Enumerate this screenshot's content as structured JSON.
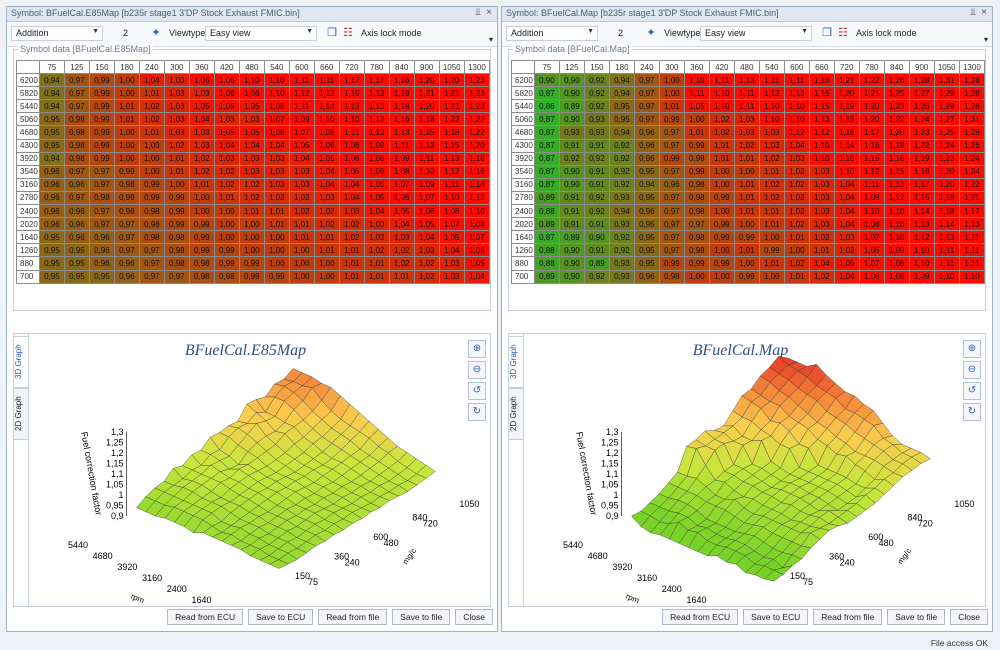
{
  "panels": [
    {
      "title": "Symbol: BFuelCal.E85Map [b235r stage1 3'DP Stock Exhaust FMIC.bin]",
      "mode": "Addition",
      "amount": "2",
      "viewtype_label": "Viewtype",
      "viewtype_value": "Easy view",
      "axis_lock_label": "Axis lock mode",
      "group_title": "Symbol data [BFuelCal.E85Map]",
      "graph_title": "BFuelCal.E85Map",
      "tabs": [
        "3D Graph",
        "2D Graph"
      ],
      "axis_z_ticks": [
        "1,3",
        "1,25",
        "1,2",
        "1,15",
        "1,1",
        "1,05",
        "1",
        "0,95",
        "0,9"
      ],
      "axis_z_label": "Fuel correction factor",
      "axis_rpm_ticks": [
        "5440",
        "4680",
        "3920",
        "3160",
        "2400",
        "1640"
      ],
      "axis_rpm_label": "rpm",
      "axis_mg_ticks": [
        "1050",
        "840",
        "720",
        "600",
        "480",
        "360",
        "240",
        "150",
        "75"
      ],
      "axis_mg_label": "mg/c",
      "buttons": [
        "Read from ECU",
        "Save to ECU",
        "Read from file",
        "Save to file",
        "Close"
      ],
      "columns": [
        "75",
        "125",
        "150",
        "180",
        "240",
        "300",
        "360",
        "420",
        "480",
        "540",
        "600",
        "660",
        "720",
        "780",
        "840",
        "900",
        "1050",
        "1300"
      ],
      "rows": [
        {
          "rpm": "6200",
          "values": [
            "0,94",
            "0,97",
            "0,99",
            "1,00",
            "1,04",
            "1,03",
            "1,06",
            "1,06",
            "1,10",
            "1,10",
            "1,11",
            "1,11",
            "1,17",
            "1,17",
            "1,16",
            "1,20",
            "1,20",
            "1,23"
          ]
        },
        {
          "rpm": "5820",
          "values": [
            "0,94",
            "0,97",
            "0,99",
            "1,00",
            "1,01",
            "1,03",
            "1,03",
            "1,06",
            "1,06",
            "1,10",
            "1,12",
            "1,12",
            "1,15",
            "1,13",
            "1,18",
            "1,21",
            "1,21",
            "1,23"
          ]
        },
        {
          "rpm": "5440",
          "values": [
            "0,94",
            "0,97",
            "0,99",
            "1,01",
            "1,02",
            "1,03",
            "1,05",
            "1,05",
            "1,05",
            "1,08",
            "1,11",
            "1,14",
            "1,13",
            "1,13",
            "1,18",
            "1,20",
            "1,21",
            "1,23"
          ]
        },
        {
          "rpm": "5060",
          "values": [
            "0,95",
            "0,98",
            "0,99",
            "1,01",
            "1,02",
            "1,03",
            "1,04",
            "1,03",
            "1,03",
            "1,07",
            "1,09",
            "1,10",
            "1,10",
            "1,12",
            "1,16",
            "1,18",
            "1,22",
            "1,22"
          ]
        },
        {
          "rpm": "4680",
          "values": [
            "0,95",
            "0,98",
            "0,99",
            "1,00",
            "1,01",
            "1,03",
            "1,03",
            "1,05",
            "1,05",
            "1,06",
            "1,07",
            "1,08",
            "1,11",
            "1,12",
            "1,13",
            "1,15",
            "1,18",
            "1,22"
          ]
        },
        {
          "rpm": "4300",
          "values": [
            "0,95",
            "0,98",
            "0,99",
            "1,00",
            "1,00",
            "1,02",
            "1,03",
            "1,04",
            "1,04",
            "1,04",
            "1,05",
            "1,06",
            "1,08",
            "1,09",
            "1,11",
            "1,13",
            "1,15",
            "1,20"
          ]
        },
        {
          "rpm": "3920",
          "values": [
            "0,94",
            "0,98",
            "0,99",
            "1,00",
            "1,00",
            "1,01",
            "1,02",
            "1,03",
            "1,03",
            "1,03",
            "1,04",
            "1,05",
            "1,06",
            "1,08",
            "1,09",
            "1,11",
            "1,13",
            "1,18"
          ]
        },
        {
          "rpm": "3540",
          "values": [
            "0,96",
            "0,97",
            "0,97",
            "0,99",
            "1,00",
            "1,01",
            "1,02",
            "1,02",
            "1,03",
            "1,03",
            "1,03",
            "1,04",
            "1,05",
            "1,06",
            "1,08",
            "1,10",
            "1,12",
            "1,16"
          ]
        },
        {
          "rpm": "3160",
          "values": [
            "0,96",
            "0,96",
            "0,97",
            "0,98",
            "0,99",
            "1,00",
            "1,01",
            "1,02",
            "1,02",
            "1,03",
            "1,03",
            "1,04",
            "1,04",
            "1,05",
            "1,07",
            "1,09",
            "1,11",
            "1,14"
          ]
        },
        {
          "rpm": "2780",
          "values": [
            "0,96",
            "0,97",
            "0,98",
            "0,98",
            "0,99",
            "0,99",
            "1,00",
            "1,01",
            "1,02",
            "1,02",
            "1,02",
            "1,03",
            "1,04",
            "1,05",
            "1,06",
            "1,07",
            "1,10",
            "1,12"
          ]
        },
        {
          "rpm": "2400",
          "values": [
            "0,96",
            "0,96",
            "0,97",
            "0,98",
            "0,98",
            "0,99",
            "1,00",
            "1,00",
            "1,01",
            "1,01",
            "1,02",
            "1,02",
            "1,03",
            "1,04",
            "1,05",
            "1,06",
            "1,08",
            "1,10"
          ]
        },
        {
          "rpm": "2020",
          "values": [
            "0,96",
            "0,96",
            "0,97",
            "0,97",
            "0,98",
            "0,99",
            "0,99",
            "1,00",
            "1,00",
            "1,01",
            "1,01",
            "1,02",
            "1,02",
            "1,03",
            "1,04",
            "1,05",
            "1,07",
            "1,08"
          ]
        },
        {
          "rpm": "1640",
          "values": [
            "0,95",
            "0,96",
            "0,96",
            "0,97",
            "0,98",
            "0,98",
            "0,99",
            "1,00",
            "1,00",
            "1,00",
            "1,01",
            "1,01",
            "1,02",
            "1,02",
            "1,03",
            "1,04",
            "1,05",
            "1,07"
          ]
        },
        {
          "rpm": "1260",
          "values": [
            "0,95",
            "0,95",
            "0,96",
            "0,97",
            "0,97",
            "0,98",
            "0,99",
            "0,99",
            "1,00",
            "1,00",
            "1,00",
            "1,01",
            "1,01",
            "1,02",
            "1,02",
            "1,03",
            "1,04",
            "1,06"
          ]
        },
        {
          "rpm": "880",
          "values": [
            "0,95",
            "0,95",
            "0,96",
            "0,96",
            "0,97",
            "0,98",
            "0,98",
            "0,99",
            "0,99",
            "1,00",
            "1,00",
            "1,00",
            "1,01",
            "1,01",
            "1,02",
            "1,02",
            "1,03",
            "1,05"
          ]
        },
        {
          "rpm": "700",
          "values": [
            "0,95",
            "0,95",
            "0,95",
            "0,96",
            "0,97",
            "0,97",
            "0,98",
            "0,98",
            "0,99",
            "0,99",
            "1,00",
            "1,00",
            "1,01",
            "1,01",
            "1,01",
            "1,02",
            "1,03",
            "1,04"
          ]
        }
      ]
    },
    {
      "title": "Symbol: BFuelCal.Map [b235r stage1 3'DP Stock Exhaust FMIC.bin]",
      "mode": "Addition",
      "amount": "2",
      "viewtype_label": "Viewtype",
      "viewtype_value": "Easy view",
      "axis_lock_label": "Axis lock mode",
      "group_title": "Symbol data [BFuelCal.Map]",
      "graph_title": "BFuelCal.Map",
      "tabs": [
        "3D Graph",
        "2D Graph"
      ],
      "axis_z_ticks": [
        "1,3",
        "1,25",
        "1,2",
        "1,15",
        "1,1",
        "1,05",
        "1",
        "0,95",
        "0,9"
      ],
      "axis_z_label": "Fuel correction factor",
      "axis_rpm_ticks": [
        "5440",
        "4680",
        "3920",
        "3160",
        "2400",
        "1640"
      ],
      "axis_rpm_label": "rpm",
      "axis_mg_ticks": [
        "1050",
        "840",
        "720",
        "600",
        "480",
        "360",
        "240",
        "150",
        "75"
      ],
      "axis_mg_label": "mg/c",
      "buttons": [
        "Read from ECU",
        "Save to ECU",
        "Read from file",
        "Save to file",
        "Close"
      ],
      "columns": [
        "75",
        "125",
        "150",
        "180",
        "240",
        "300",
        "360",
        "420",
        "480",
        "540",
        "600",
        "660",
        "720",
        "780",
        "840",
        "900",
        "1050",
        "1300"
      ],
      "rows": [
        {
          "rpm": "6200",
          "values": [
            "0,90",
            "0,90",
            "0,92",
            "0,94",
            "0,97",
            "1,00",
            "1,10",
            "1,11",
            "1,13",
            "1,11",
            "1,11",
            "1,16",
            "1,21",
            "1,22",
            "1,26",
            "1,28",
            "1,31",
            "1,28"
          ]
        },
        {
          "rpm": "5820",
          "values": [
            "0,87",
            "0,90",
            "0,92",
            "0,94",
            "0,97",
            "1,00",
            "1,11",
            "1,10",
            "1,11",
            "1,12",
            "1,13",
            "1,15",
            "1,20",
            "1,21",
            "1,25",
            "1,27",
            "1,29",
            "1,28"
          ]
        },
        {
          "rpm": "5440",
          "values": [
            "0,86",
            "0,89",
            "0,92",
            "0,95",
            "0,97",
            "1,01",
            "1,05",
            "1,10",
            "1,11",
            "1,10",
            "1,10",
            "1,15",
            "1,19",
            "1,20",
            "1,23",
            "1,26",
            "1,28",
            "1,28"
          ]
        },
        {
          "rpm": "5060",
          "values": [
            "0,87",
            "0,90",
            "0,93",
            "0,95",
            "0,97",
            "0,99",
            "1,00",
            "1,02",
            "1,03",
            "1,10",
            "1,10",
            "1,13",
            "1,15",
            "1,20",
            "1,22",
            "1,24",
            "1,27",
            "1,31"
          ]
        },
        {
          "rpm": "4680",
          "values": [
            "0,87",
            "0,93",
            "0,93",
            "0,94",
            "0,96",
            "0,97",
            "1,01",
            "1,02",
            "1,03",
            "1,03",
            "1,12",
            "1,12",
            "1,16",
            "1,17",
            "1,20",
            "1,23",
            "1,25",
            "1,28"
          ]
        },
        {
          "rpm": "4300",
          "values": [
            "0,87",
            "0,91",
            "0,91",
            "0,92",
            "0,96",
            "0,97",
            "0,99",
            "1,01",
            "1,02",
            "1,03",
            "1,04",
            "1,10",
            "1,14",
            "1,16",
            "1,18",
            "1,22",
            "1,24",
            "1,26"
          ]
        },
        {
          "rpm": "3920",
          "values": [
            "0,87",
            "0,92",
            "0,92",
            "0,92",
            "0,96",
            "0,99",
            "0,98",
            "1,01",
            "1,01",
            "1,02",
            "1,03",
            "1,10",
            "1,10",
            "1,15",
            "1,16",
            "1,19",
            "1,23",
            "1,24"
          ]
        },
        {
          "rpm": "3540",
          "values": [
            "0,87",
            "0,90",
            "0,91",
            "0,92",
            "0,95",
            "0,97",
            "0,99",
            "1,00",
            "1,00",
            "1,01",
            "1,02",
            "1,03",
            "1,10",
            "1,12",
            "1,15",
            "1,18",
            "1,20",
            "1,24"
          ]
        },
        {
          "rpm": "3160",
          "values": [
            "0,87",
            "0,90",
            "0,91",
            "0,92",
            "0,94",
            "0,96",
            "0,98",
            "1,00",
            "1,01",
            "1,02",
            "1,02",
            "1,03",
            "1,04",
            "1,11",
            "1,13",
            "1,17",
            "1,20",
            "1,22"
          ]
        },
        {
          "rpm": "2780",
          "values": [
            "0,89",
            "0,91",
            "0,92",
            "0,93",
            "0,95",
            "0,97",
            "0,98",
            "0,99",
            "1,01",
            "1,02",
            "1,02",
            "1,03",
            "1,04",
            "1,09",
            "1,12",
            "1,15",
            "1,19",
            "1,21"
          ]
        },
        {
          "rpm": "2400",
          "values": [
            "0,88",
            "0,91",
            "0,92",
            "0,94",
            "0,96",
            "0,97",
            "0,98",
            "1,00",
            "1,01",
            "1,01",
            "1,02",
            "1,03",
            "1,04",
            "1,10",
            "1,10",
            "1,14",
            "1,18",
            "1,17"
          ]
        },
        {
          "rpm": "2020",
          "values": [
            "0,89",
            "0,91",
            "0,91",
            "0,93",
            "0,95",
            "0,97",
            "0,97",
            "0,99",
            "1,00",
            "1,01",
            "1,02",
            "1,03",
            "1,04",
            "1,08",
            "1,10",
            "1,13",
            "1,14",
            "1,13"
          ]
        },
        {
          "rpm": "1640",
          "values": [
            "0,87",
            "0,89",
            "0,90",
            "0,92",
            "0,95",
            "0,97",
            "0,98",
            "0,99",
            "0,99",
            "1,00",
            "1,01",
            "1,02",
            "1,03",
            "1,07",
            "1,10",
            "1,12",
            "1,13",
            "1,11"
          ]
        },
        {
          "rpm": "1260",
          "values": [
            "0,88",
            "0,90",
            "0,91",
            "0,92",
            "0,95",
            "0,97",
            "0,98",
            "1,00",
            "1,01",
            "0,99",
            "1,00",
            "1,01",
            "1,03",
            "1,05",
            "1,09",
            "1,10",
            "1,11",
            "1,11"
          ]
        },
        {
          "rpm": "880",
          "values": [
            "0,88",
            "0,90",
            "0,89",
            "0,93",
            "0,95",
            "0,99",
            "0,99",
            "0,99",
            "1,00",
            "1,01",
            "1,02",
            "1,04",
            "1,05",
            "1,07",
            "1,08",
            "1,10",
            "1,11",
            "1,11"
          ]
        },
        {
          "rpm": "700",
          "values": [
            "0,89",
            "0,90",
            "0,92",
            "0,93",
            "0,96",
            "0,98",
            "1,00",
            "1,00",
            "0,99",
            "1,00",
            "1,01",
            "1,02",
            "1,04",
            "1,06",
            "1,08",
            "1,09",
            "1,10",
            "1,10"
          ]
        }
      ]
    }
  ],
  "status": "File access OK",
  "colors": {
    "low": "#2bb52b",
    "high": "#ff0a00",
    "header_bg": "#dfe7f2",
    "accent": "#2c5bb0"
  }
}
